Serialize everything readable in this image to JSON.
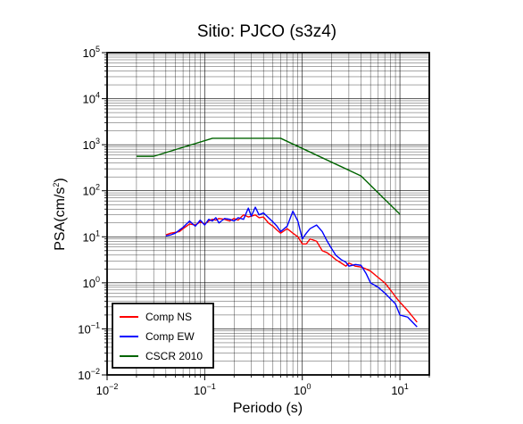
{
  "chart_data": {
    "type": "line",
    "title": "Sitio: PJCO (s3z4)",
    "xlabel": "Periodo (s)",
    "ylabel": "PSA(cm/s²)",
    "ylabel_base": "PSA(cm/s",
    "ylabel_sup": "2",
    "ylabel_close": ")",
    "x_scale": "log",
    "y_scale": "log",
    "xlim": [
      0.01,
      20
    ],
    "ylim": [
      0.01,
      100000
    ],
    "grid": true,
    "legend_position": "bottom-left",
    "x_ticks": [
      {
        "value": 0.01,
        "base": "10",
        "exp": "−2"
      },
      {
        "value": 0.1,
        "base": "10",
        "exp": "−1"
      },
      {
        "value": 1,
        "base": "10",
        "exp": "0"
      },
      {
        "value": 10,
        "base": "10",
        "exp": "1"
      }
    ],
    "y_ticks": [
      {
        "value": 0.01,
        "base": "10",
        "exp": "−2"
      },
      {
        "value": 0.1,
        "base": "10",
        "exp": "−1"
      },
      {
        "value": 1,
        "base": "10",
        "exp": "0"
      },
      {
        "value": 10,
        "base": "10",
        "exp": "1"
      },
      {
        "value": 100,
        "base": "10",
        "exp": "2"
      },
      {
        "value": 1000,
        "base": "10",
        "exp": "3"
      },
      {
        "value": 10000,
        "base": "10",
        "exp": "4"
      },
      {
        "value": 100000,
        "base": "10",
        "exp": "5"
      }
    ],
    "series": [
      {
        "name": "Comp NS",
        "color": "#ff0000",
        "x": [
          0.04,
          0.045,
          0.05,
          0.055,
          0.06,
          0.07,
          0.08,
          0.09,
          0.1,
          0.11,
          0.12,
          0.13,
          0.14,
          0.16,
          0.18,
          0.2,
          0.22,
          0.25,
          0.28,
          0.3,
          0.33,
          0.36,
          0.4,
          0.45,
          0.5,
          0.55,
          0.6,
          0.7,
          0.8,
          0.9,
          1.0,
          1.1,
          1.2,
          1.4,
          1.6,
          1.8,
          2.0,
          2.2,
          2.5,
          2.8,
          3.0,
          3.5,
          4.0,
          4.5,
          5.0,
          6.0,
          7.0,
          8.0,
          9.0,
          10.0,
          12.0,
          15.0
        ],
        "y": [
          11,
          12,
          12.5,
          13,
          15,
          19,
          18,
          21,
          19,
          22,
          24,
          23,
          25,
          24,
          22,
          25,
          23,
          30,
          27,
          28,
          30,
          26,
          27,
          20,
          17,
          14,
          12,
          15,
          12,
          10,
          7,
          7,
          9,
          8,
          5,
          4.5,
          3.8,
          3.2,
          2.7,
          2.3,
          2.7,
          2.3,
          2.2,
          2.0,
          1.8,
          1.3,
          1.0,
          0.7,
          0.5,
          0.38,
          0.25,
          0.14
        ]
      },
      {
        "name": "Comp EW",
        "color": "#0000ff",
        "x": [
          0.04,
          0.045,
          0.05,
          0.055,
          0.06,
          0.07,
          0.08,
          0.09,
          0.1,
          0.11,
          0.12,
          0.13,
          0.14,
          0.16,
          0.18,
          0.2,
          0.22,
          0.25,
          0.28,
          0.3,
          0.33,
          0.36,
          0.4,
          0.45,
          0.5,
          0.55,
          0.6,
          0.7,
          0.8,
          0.9,
          1.0,
          1.1,
          1.2,
          1.4,
          1.6,
          1.8,
          2.0,
          2.2,
          2.5,
          2.8,
          3.0,
          3.5,
          4.0,
          4.5,
          5.0,
          6.0,
          7.0,
          8.0,
          9.0,
          10.0,
          12.0,
          15.0
        ],
        "y": [
          10.5,
          11,
          12,
          14,
          16,
          22,
          17,
          23,
          18,
          24,
          22,
          26,
          20,
          25,
          24,
          22,
          26,
          24,
          42,
          28,
          44,
          30,
          33,
          26,
          21,
          17,
          13,
          17,
          36,
          22,
          9,
          12,
          15,
          18,
          13,
          8,
          5.5,
          4,
          3.2,
          2.8,
          2.3,
          2.5,
          2.4,
          1.6,
          1.0,
          0.8,
          0.6,
          0.45,
          0.35,
          0.2,
          0.18,
          0.11
        ]
      },
      {
        "name": "CSCR 2010",
        "color": "#006400",
        "x": [
          0.02,
          0.03,
          0.12,
          0.6,
          4.0,
          10.0
        ],
        "y": [
          560,
          560,
          1380,
          1380,
          210,
          31
        ]
      }
    ]
  }
}
